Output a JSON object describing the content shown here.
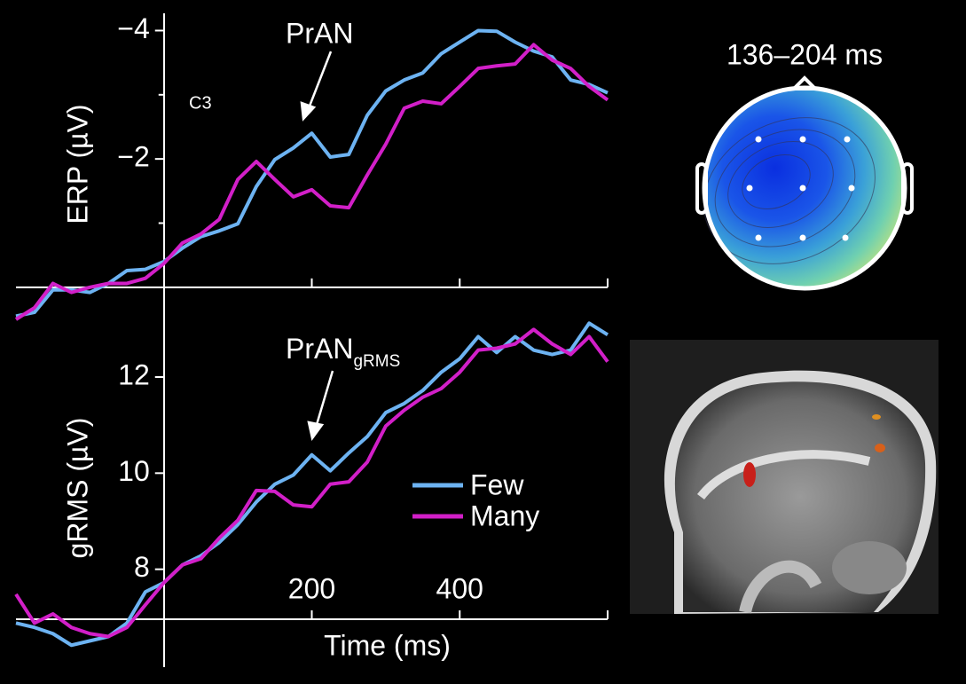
{
  "chart_data": [
    {
      "type": "line",
      "ylabel": "ERP (µV)",
      "annotations": [
        "PrAN",
        "C3"
      ],
      "x": [
        -200,
        -175,
        -150,
        -125,
        -100,
        -75,
        -50,
        -25,
        0,
        25,
        50,
        75,
        100,
        125,
        150,
        175,
        200,
        225,
        250,
        275,
        300,
        325,
        350,
        375,
        400,
        425,
        450,
        475,
        500,
        525,
        550,
        575,
        600
      ],
      "xlim": [
        -200,
        600
      ],
      "xminor_ticks": [
        200,
        400,
        600
      ],
      "ylim": [
        0.5,
        -4.2
      ],
      "yticks": [
        {
          "value": -4,
          "label": "−4"
        },
        {
          "value": -2,
          "label": "−2"
        }
      ],
      "yminor_ticks": [
        -3,
        -1
      ],
      "series": [
        {
          "name": "Few",
          "color": "#6db3f2",
          "values": [
            0.45,
            0.39,
            0.04,
            0.04,
            0.08,
            -0.06,
            -0.26,
            -0.28,
            -0.4,
            -0.61,
            -0.79,
            -0.88,
            -0.99,
            -1.57,
            -1.99,
            -2.17,
            -2.4,
            -2.03,
            -2.07,
            -2.68,
            -3.06,
            -3.23,
            -3.34,
            -3.64,
            -3.82,
            -4.0,
            -3.99,
            -3.82,
            -3.68,
            -3.59,
            -3.23,
            -3.16,
            -3.03
          ]
        },
        {
          "name": "Many",
          "color": "#d21fc8",
          "values": [
            0.5,
            0.32,
            -0.06,
            0.08,
            0,
            -0.06,
            -0.06,
            -0.14,
            -0.37,
            -0.69,
            -0.83,
            -1.06,
            -1.68,
            -1.96,
            -1.68,
            -1.41,
            -1.52,
            -1.27,
            -1.24,
            -1.75,
            -2.23,
            -2.79,
            -2.9,
            -2.86,
            -3.13,
            -3.41,
            -3.45,
            -3.48,
            -3.78,
            -3.54,
            -3.41,
            -3.13,
            -2.92
          ]
        }
      ]
    },
    {
      "type": "line",
      "ylabel": "gRMS (µV)",
      "xlabel": "Time (ms)",
      "annotation": {
        "text": "PrAN",
        "subscript": "gRMS"
      },
      "x": [
        -200,
        -175,
        -150,
        -125,
        -100,
        -75,
        -50,
        -25,
        0,
        25,
        50,
        75,
        100,
        125,
        150,
        175,
        200,
        225,
        250,
        275,
        300,
        325,
        350,
        375,
        400,
        425,
        450,
        475,
        500,
        525,
        550,
        575,
        600
      ],
      "xlim": [
        -200,
        600
      ],
      "xticks": [
        200,
        400
      ],
      "xminor_ticks": [
        600
      ],
      "ylim": [
        6,
        13.2
      ],
      "yticks": [
        8,
        10,
        12
      ],
      "legend": "center",
      "series": [
        {
          "name": "Few",
          "color": "#6db3f2",
          "values": [
            6.88,
            6.79,
            6.66,
            6.42,
            6.51,
            6.6,
            6.88,
            7.53,
            7.72,
            8.09,
            8.28,
            8.56,
            8.93,
            9.4,
            9.77,
            9.96,
            10.38,
            10.05,
            10.42,
            10.76,
            11.26,
            11.45,
            11.72,
            12.1,
            12.38,
            12.84,
            12.51,
            12.84,
            12.56,
            12.47,
            12.56,
            13.12,
            12.88
          ]
        },
        {
          "name": "Many",
          "color": "#d21fc8",
          "values": [
            7.48,
            6.88,
            7.07,
            6.79,
            6.66,
            6.6,
            6.79,
            7.26,
            7.72,
            8.09,
            8.22,
            8.65,
            9.02,
            9.64,
            9.62,
            9.34,
            9.3,
            9.77,
            9.82,
            10.23,
            10.98,
            11.31,
            11.58,
            11.76,
            12.1,
            12.56,
            12.6,
            12.69,
            12.99,
            12.69,
            12.47,
            12.84,
            12.32
          ]
        }
      ]
    }
  ],
  "topomap": {
    "title": "136–204 ms"
  }
}
